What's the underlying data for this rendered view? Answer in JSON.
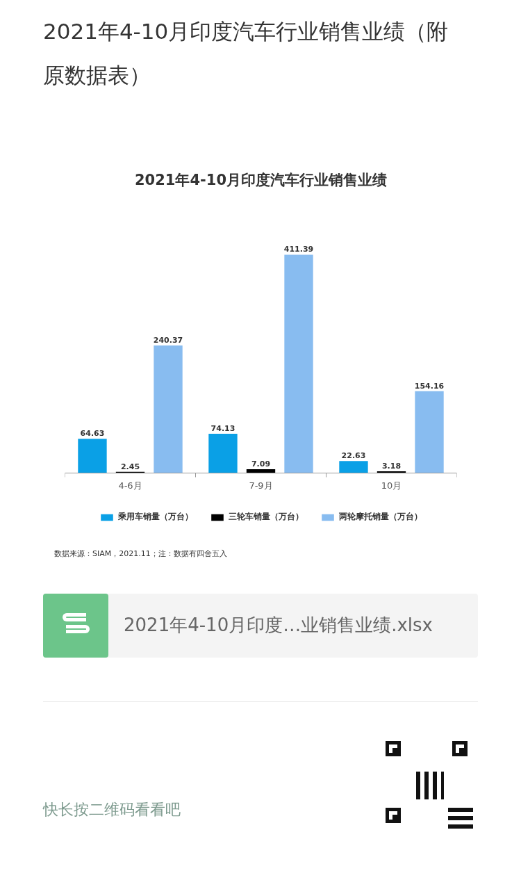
{
  "chart_data": {
    "type": "bar",
    "title": "2021年4-10月印度汽车行业销售业绩（附原数据表）",
    "subtitle": "2021年4-10月印度汽车行业销售业绩",
    "categories": [
      "4-6月",
      "7-9月",
      "10月"
    ],
    "series": [
      {
        "name": "乘用车销量（万台）",
        "color": "#0aa0e6",
        "values": [
          64.63,
          74.13,
          22.63
        ]
      },
      {
        "name": "三轮车销量（万台）",
        "color": "#000000",
        "values": [
          2.45,
          7.09,
          3.18
        ]
      },
      {
        "name": "两轮摩托销量（万台）",
        "color": "#88bcf0",
        "values": [
          240.37,
          411.39,
          154.16
        ]
      }
    ],
    "data_labels": true,
    "legend": "bottom",
    "grid": false,
    "tick_labels": "x",
    "annotations": [
      "数据来源：SIAM，2021.11；注：数据有四舍五入",
      "2021年4-10月印度…业销售业绩.xlsx",
      "快长按二维码看看吧"
    ]
  }
}
